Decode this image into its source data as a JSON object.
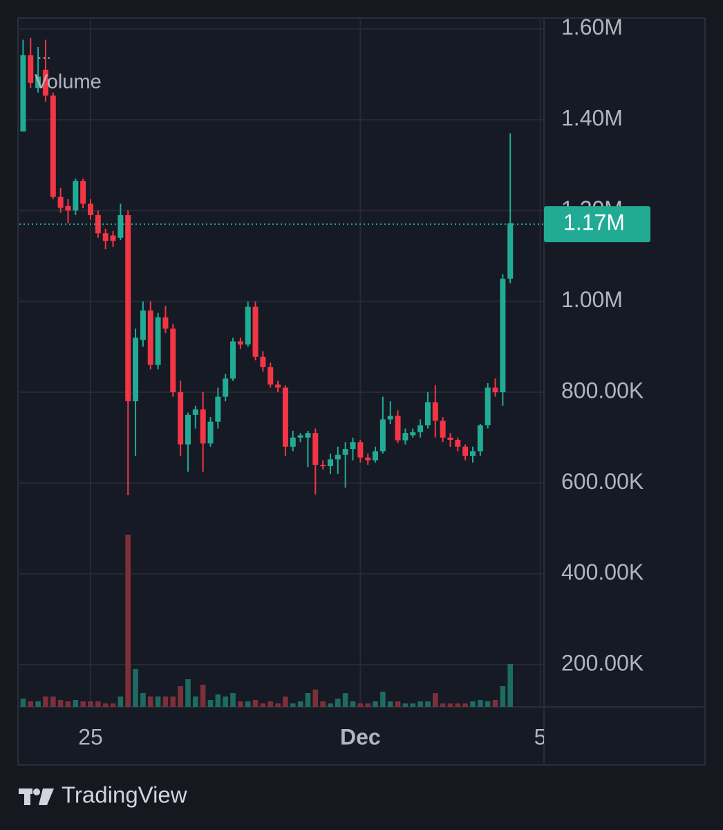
{
  "brand": "TradingView",
  "chart_data": {
    "type": "candlestick",
    "categories": [
      null,
      null,
      null,
      null,
      null,
      null,
      null,
      null,
      null,
      "25",
      null,
      null,
      null,
      null,
      null,
      null,
      null,
      null,
      null,
      null,
      null,
      null,
      null,
      null,
      null,
      null,
      null,
      null,
      null,
      null,
      null,
      null,
      null,
      null,
      null,
      null,
      null,
      null,
      null,
      null,
      null,
      null,
      null,
      null,
      null,
      "Dec",
      null,
      null,
      null,
      null,
      null,
      null,
      null,
      null,
      null,
      null,
      null,
      null,
      null,
      null,
      null,
      null,
      null,
      null,
      null,
      null,
      null,
      null,
      null,
      "5"
    ],
    "open": [
      1374000,
      1542000,
      1470000,
      1510000,
      1453000,
      1230000,
      1210000,
      1200000,
      1265000,
      1215000,
      1190000,
      1150000,
      1145000,
      1140000,
      1190000,
      780000,
      915000,
      980000,
      860000,
      965000,
      940000,
      800000,
      685000,
      750000,
      762000,
      687000,
      735000,
      790000,
      830000,
      912000,
      905000,
      988000,
      878000,
      855000,
      817000,
      810000,
      680000,
      700000,
      700000,
      710000,
      640000,
      637000,
      652000,
      662000,
      675000,
      690000,
      656000,
      650000,
      670000,
      740000,
      748000,
      694000,
      705000,
      712000,
      727000,
      778000,
      737000,
      700000,
      695000,
      680000,
      660000,
      670000,
      727000,
      810000,
      800000,
      1050000,
      null,
      null,
      null,
      null
    ],
    "high": [
      1576000,
      1580000,
      1560000,
      1576000,
      1460000,
      1250000,
      1225000,
      1270000,
      1270000,
      1225000,
      1200000,
      1160000,
      1155000,
      1215000,
      1200000,
      940000,
      1000000,
      1000000,
      975000,
      990000,
      950000,
      825000,
      755000,
      770000,
      800000,
      745000,
      810000,
      840000,
      920000,
      920000,
      1000000,
      1000000,
      890000,
      865000,
      825000,
      815000,
      715000,
      710000,
      715000,
      720000,
      650000,
      665000,
      680000,
      690000,
      700000,
      695000,
      665000,
      680000,
      790000,
      780000,
      760000,
      720000,
      720000,
      740000,
      800000,
      815000,
      745000,
      710000,
      700000,
      685000,
      680000,
      730000,
      820000,
      830000,
      1060000,
      1370000,
      null,
      null,
      null,
      null
    ],
    "low": [
      1374000,
      1470000,
      1460000,
      1440000,
      1225000,
      1195000,
      1172000,
      1190000,
      1205000,
      1180000,
      1140000,
      1115000,
      1120000,
      1135000,
      573000,
      660000,
      900000,
      850000,
      850000,
      930000,
      790000,
      660000,
      625000,
      720000,
      625000,
      680000,
      720000,
      780000,
      825000,
      895000,
      900000,
      870000,
      845000,
      810000,
      800000,
      660000,
      670000,
      690000,
      635000,
      575000,
      630000,
      620000,
      620000,
      590000,
      650000,
      645000,
      640000,
      645000,
      665000,
      730000,
      688000,
      685000,
      700000,
      700000,
      720000,
      700000,
      690000,
      680000,
      670000,
      650000,
      645000,
      660000,
      720000,
      790000,
      770000,
      1040000,
      null,
      null,
      null,
      null
    ],
    "close": [
      1542000,
      1481000,
      1495000,
      1453000,
      1230000,
      1206000,
      1200000,
      1265000,
      1215000,
      1190000,
      1150000,
      1133000,
      1133000,
      1190000,
      780000,
      920000,
      980000,
      860000,
      965000,
      940000,
      800000,
      685000,
      750000,
      762000,
      687000,
      735000,
      790000,
      830000,
      912000,
      905000,
      988000,
      878000,
      855000,
      817000,
      810000,
      680000,
      700000,
      705000,
      710000,
      640000,
      637000,
      652000,
      662000,
      675000,
      690000,
      656000,
      650000,
      670000,
      740000,
      748000,
      694000,
      710000,
      712000,
      727000,
      778000,
      737000,
      700000,
      695000,
      680000,
      660000,
      670000,
      727000,
      810000,
      800000,
      1050000,
      1172000,
      null,
      null,
      null,
      null
    ],
    "volume": {
      "name": "Volume",
      "values": [
        12,
        8,
        8,
        15,
        15,
        10,
        8,
        10,
        8,
        8,
        8,
        5,
        5,
        15,
        249,
        55,
        20,
        15,
        15,
        15,
        15,
        30,
        40,
        15,
        32,
        10,
        18,
        15,
        20,
        8,
        8,
        10,
        5,
        8,
        5,
        15,
        5,
        8,
        20,
        25,
        8,
        5,
        12,
        20,
        8,
        5,
        5,
        8,
        22,
        8,
        8,
        5,
        5,
        8,
        8,
        20,
        5,
        5,
        5,
        5,
        8,
        10,
        8,
        10,
        30,
        62,
        null,
        null,
        null,
        null
      ]
    },
    "up_color": "#22ab94",
    "down_color": "#f23645",
    "volume_up_color": "#1d6b61",
    "volume_down_color": "#7e2f38",
    "last_price": 1170000,
    "last_price_label": "1.17M",
    "ylim": [
      107000,
      1621000
    ],
    "yticks": [
      {
        "value": 1600000,
        "label": "1.60M"
      },
      {
        "value": 1400000,
        "label": "1.40M"
      },
      {
        "value": 1200000,
        "label": "1.20M"
      },
      {
        "value": 1000000,
        "label": "1.00M"
      },
      {
        "value": 800000,
        "label": "800.00K"
      },
      {
        "value": 600000,
        "label": "600.00K"
      },
      {
        "value": 400000,
        "label": "400.00K"
      },
      {
        "value": 200000,
        "label": "200.00K"
      }
    ],
    "grid": true
  }
}
